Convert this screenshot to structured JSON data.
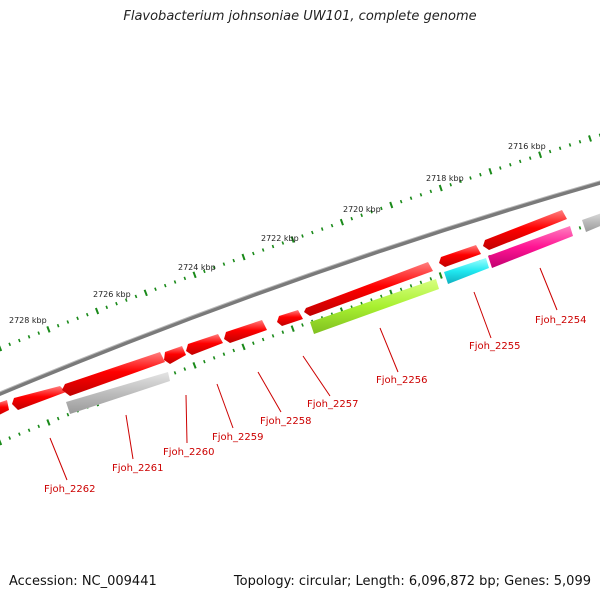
{
  "title": "Flavobacterium johnsoniae UW101, complete genome",
  "accession": "Accession: NC_009441",
  "stats": "Topology: circular; Length: 6,096,872 bp; Genes: 5,099",
  "ruler_labels": [
    "2716 kbp",
    "2718 kbp",
    "2720 kbp",
    "2722 kbp",
    "2724 kbp",
    "2726 kbp",
    "2728 kbp"
  ],
  "gene_labels": [
    "Fjoh_2254",
    "Fjoh_2255",
    "Fjoh_2256",
    "Fjoh_2257",
    "Fjoh_2258",
    "Fjoh_2259",
    "Fjoh_2260",
    "Fjoh_2261",
    "Fjoh_2262"
  ],
  "colors": {
    "backbone": "#7a7a7a",
    "forward_gene": "#ff0000",
    "reverse_red": "#ff0000",
    "reverse_grey": "#c0c0c0",
    "reverse_green": "#a8f030",
    "reverse_cyan": "#20e8f0",
    "reverse_magenta": "#ff1493",
    "ruler_ticks": "#1a8a1a",
    "label_text": "#cc0000"
  }
}
